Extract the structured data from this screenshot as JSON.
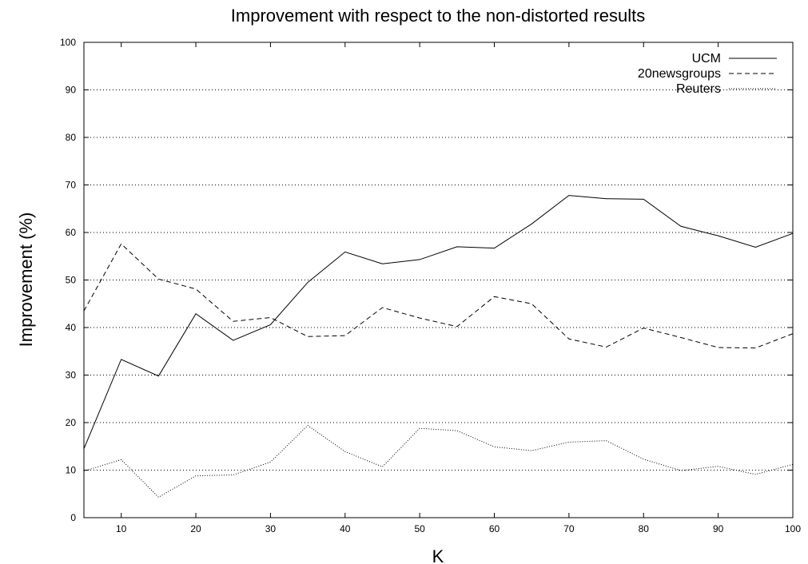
{
  "chart_data": {
    "type": "line",
    "title": "Improvement with respect to the non-distorted results",
    "xlabel": "K",
    "ylabel": "Improvement (%)",
    "xlim": [
      5,
      100
    ],
    "ylim": [
      0,
      100
    ],
    "xticks": [
      10,
      20,
      30,
      40,
      50,
      60,
      70,
      80,
      90,
      100
    ],
    "yticks": [
      0,
      10,
      20,
      30,
      40,
      50,
      60,
      70,
      80,
      90,
      100
    ],
    "grid": "horizontal dotted",
    "legend_position": "top-right",
    "x": [
      5,
      10,
      15,
      20,
      25,
      30,
      35,
      40,
      45,
      50,
      55,
      60,
      65,
      70,
      75,
      80,
      85,
      90,
      95,
      100
    ],
    "series": [
      {
        "name": "UCM",
        "style": "solid",
        "values": [
          14.5,
          33.3,
          29.8,
          42.9,
          37.3,
          40.6,
          49.5,
          55.9,
          53.4,
          54.3,
          57.0,
          56.7,
          61.8,
          67.8,
          67.1,
          67.0,
          61.3,
          59.3,
          56.9,
          59.8
        ]
      },
      {
        "name": "20newsgroups",
        "style": "dashed",
        "values": [
          43.5,
          57.6,
          50.2,
          48.1,
          41.3,
          42.1,
          38.1,
          38.3,
          44.2,
          42.0,
          40.2,
          46.5,
          45.0,
          37.6,
          35.9,
          39.9,
          37.9,
          35.8,
          35.7,
          38.7
        ]
      },
      {
        "name": "Reuters",
        "style": "dotted",
        "values": [
          9.8,
          12.2,
          4.3,
          8.8,
          9.0,
          11.7,
          19.4,
          13.9,
          10.7,
          18.8,
          18.3,
          14.9,
          14.1,
          15.9,
          16.2,
          12.3,
          9.9,
          10.8,
          9.1,
          11.2
        ]
      }
    ]
  }
}
